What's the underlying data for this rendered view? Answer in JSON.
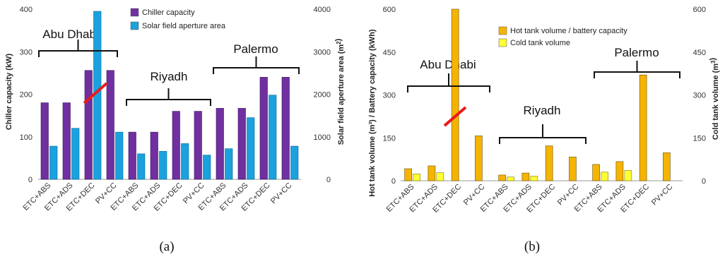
{
  "chart_data": [
    {
      "type": "bar",
      "panel_label": "(a)",
      "categories": [
        "ETC+ABS",
        "ETC+ADS",
        "ETC+DEC",
        "PV+CC",
        "ETC+ABS",
        "ETC+ADS",
        "ETC+DEC",
        "PV+CC",
        "ETC+ABS",
        "ETC+ADS",
        "ETC+DEC",
        "PV+CC"
      ],
      "series": [
        {
          "name": "Chiller capacity",
          "axis": "left",
          "color": "#7030A0",
          "values": [
            180,
            180,
            256,
            256,
            111,
            111,
            160,
            160,
            167,
            167,
            240,
            240
          ]
        },
        {
          "name": "Solar field aperture area",
          "axis": "right",
          "color": "#1BA1DE",
          "values": [
            780,
            1200,
            3950,
            1110,
            600,
            660,
            840,
            570,
            720,
            1450,
            1980,
            780
          ]
        }
      ],
      "ylabel": "Chiller capacity (kW)",
      "ylim": [
        0,
        400
      ],
      "yticks": [
        "0",
        "100",
        "200",
        "300",
        "400"
      ],
      "y2label": "Solar field aperture area (m²)",
      "y2lim": [
        0,
        4000
      ],
      "y2ticks": [
        "0",
        "1000",
        "2000",
        "3000",
        "4000"
      ],
      "groups": [
        "Abu Dhabi",
        "Riyadh",
        "Palermo"
      ],
      "legend": "top-center",
      "grid": false
    },
    {
      "type": "bar",
      "panel_label": "(b)",
      "categories": [
        "ETC+ABS",
        "ETC+ADS",
        "ETC+DEC",
        "PV+CC",
        "ETC+ABS",
        "ETC+ADS",
        "ETC+DEC",
        "PV+CC",
        "ETC+ABS",
        "ETC+ADS",
        "ETC+DEC",
        "PV+CC"
      ],
      "series": [
        {
          "name": "Hot tank volume / battery capacity",
          "axis": "left",
          "color": "#F5B400",
          "values": [
            42,
            52,
            600,
            157,
            20,
            27,
            122,
            83,
            57,
            67,
            370,
            98
          ]
        },
        {
          "name": "Cold tank volume",
          "axis": "left",
          "color": "#FFFF33",
          "values": [
            24,
            28,
            0,
            0,
            13,
            16,
            0,
            0,
            30,
            36,
            0,
            0
          ]
        }
      ],
      "ylabel": "Hot tank volume (m³) / Battery capacity (kWh)",
      "ylim": [
        0,
        600
      ],
      "yticks": [
        "0",
        "150",
        "300",
        "450",
        "600"
      ],
      "y2label": "Cold tank volume (m³)",
      "y2lim": [
        0,
        600
      ],
      "y2ticks": [
        "0",
        "150",
        "300",
        "450",
        "600"
      ],
      "groups": [
        "Abu Dhabi",
        "Riyadh",
        "Palermo"
      ],
      "legend": "top-right",
      "grid": false
    }
  ]
}
